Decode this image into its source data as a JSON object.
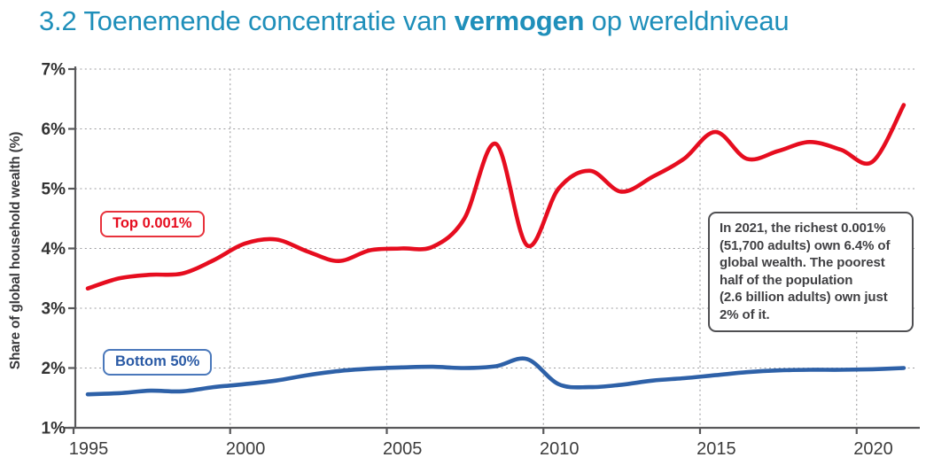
{
  "title": {
    "prefix": "3.2 Toenemende concentratie van ",
    "bold": "vermogen",
    "suffix": " op wereldniveau",
    "color": "#1f8fba"
  },
  "chart_data": {
    "type": "line",
    "title": "",
    "xlabel": "",
    "ylabel": "Share of global household wealth (%)",
    "x": [
      1995,
      1996,
      1997,
      1998,
      1999,
      2000,
      2001,
      2002,
      2003,
      2004,
      2005,
      2006,
      2007,
      2008,
      2009,
      2010,
      2011,
      2012,
      2013,
      2014,
      2015,
      2016,
      2017,
      2018,
      2019,
      2020,
      2021
    ],
    "series": [
      {
        "name": "Top 0.001%",
        "color": "#e60d1f",
        "values": [
          3.33,
          3.5,
          3.56,
          3.58,
          3.8,
          4.08,
          4.15,
          3.95,
          3.79,
          3.97,
          4.0,
          4.03,
          4.5,
          5.75,
          4.05,
          5.0,
          5.3,
          4.95,
          5.2,
          5.5,
          5.95,
          5.5,
          5.63,
          5.78,
          5.65,
          5.45,
          6.4
        ]
      },
      {
        "name": "Bottom 50%",
        "color": "#2e61a8",
        "values": [
          1.56,
          1.58,
          1.62,
          1.61,
          1.68,
          1.73,
          1.79,
          1.88,
          1.95,
          1.99,
          2.01,
          2.02,
          2.0,
          2.03,
          2.15,
          1.73,
          1.68,
          1.72,
          1.79,
          1.83,
          1.88,
          1.93,
          1.96,
          1.97,
          1.97,
          1.98,
          2.0
        ]
      }
    ],
    "x_axis_ticks": [
      1995,
      2000,
      2005,
      2010,
      2015,
      2020
    ],
    "x_tick_labels": [
      "1995",
      "2000",
      "2005",
      "2010",
      "2015",
      "2020"
    ],
    "y_tick_values": [
      7,
      6,
      5,
      4,
      3,
      2,
      1
    ],
    "y_tick_labels": [
      "7%",
      "6%",
      "5%",
      "4%",
      "3%",
      "2%",
      "1%"
    ],
    "ylim": [
      1,
      7
    ],
    "xlim": [
      1995,
      2022
    ],
    "grid": "dashed horizontal and vertical",
    "legend_position": "inline labels on chart"
  },
  "annotation": {
    "lines": [
      "In 2021, the richest 0.001%",
      "(51,700 adults) own 6.4% of",
      "global wealth. The poorest",
      "half of the population",
      "(2.6 billion adults) own just",
      "2% of it."
    ]
  },
  "colors": {
    "title": "#1f8fba",
    "top_series": "#e60d1f",
    "bottom_series": "#2e61a8",
    "axis": "#58585a",
    "gridline": "#9d9da0",
    "annotation_border": "#4f4f52"
  }
}
